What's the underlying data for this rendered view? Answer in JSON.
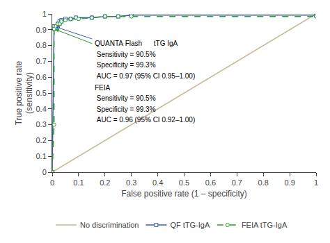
{
  "chart_data": {
    "type": "line",
    "xlabel": "False positive rate (1 – specificity)",
    "ylabel": "True positive rate\n(sensitivity)",
    "xlim": [
      0,
      1
    ],
    "ylim": [
      0,
      1
    ],
    "xticks": [
      0,
      0.1,
      0.2,
      0.3,
      0.4,
      0.5,
      0.6,
      0.7,
      0.8,
      0.9,
      1
    ],
    "yticks": [
      0,
      0.1,
      0.2,
      0.3,
      0.4,
      0.5,
      0.6,
      0.7,
      0.8,
      0.9,
      1
    ],
    "grid": false,
    "legend": "bottom",
    "series": [
      {
        "name": "No discrimination",
        "color": "#c8b89a",
        "line_style": "solid",
        "x": [
          0,
          1
        ],
        "values": [
          0,
          1
        ]
      },
      {
        "name": "QF tTG-IgA",
        "color": "#3a5fa8",
        "line_style": "solid",
        "marker": "square",
        "x": [
          0,
          0.007,
          0.007,
          0.014,
          0.021,
          0.021,
          0.028,
          0.028,
          0.035,
          0.035,
          0.05,
          0.07,
          0.09,
          0.15,
          0.2,
          0.25,
          0.3,
          1.0
        ],
        "values": [
          0,
          0.905,
          0.921,
          0.921,
          0.921,
          0.937,
          0.937,
          0.952,
          0.952,
          0.96,
          0.968,
          0.968,
          0.976,
          0.976,
          0.984,
          0.984,
          0.992,
          0.992
        ]
      },
      {
        "name": "FEIA tTG-IgA",
        "color": "#2a9a2a",
        "line_style": "dashed",
        "marker": "circle",
        "x": [
          0,
          0.007,
          0.007,
          0.014,
          0.021,
          0.028,
          0.035,
          0.05,
          0.07,
          0.1,
          0.15,
          0.2,
          0.25,
          0.3,
          1.0
        ],
        "values": [
          0,
          0.3,
          0.905,
          0.921,
          0.937,
          0.937,
          0.952,
          0.96,
          0.968,
          0.968,
          0.976,
          0.984,
          0.984,
          0.984,
          0.984
        ]
      }
    ],
    "annotations": [
      "QUANTA Flash      tTG IgA",
      " Sensitivity = 90.5%",
      " Specificity = 99.3%",
      " AUC = 0.97 (95% CI 0.95–1.00)",
      "FEIA",
      " Sensitivity = 90.5%",
      " Specificity = 99.3%",
      " AUC = 0.96 (95% CI 0.92–1.00)"
    ]
  }
}
